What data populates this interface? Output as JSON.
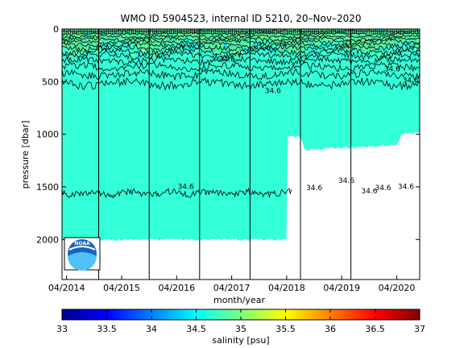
{
  "chart_data": [
    {
      "type": "heatmap",
      "title": "WMO ID 5904523, internal ID 5210, 20–Nov–2020",
      "xlabel": "month/year",
      "ylabel": "pressure [dbar]",
      "x_tick_labels": [
        "04/2014",
        "04/2015",
        "04/2016",
        "04/2017",
        "04/2018",
        "04/2019",
        "04/2020"
      ],
      "x_tick_dates": [
        "2014-04",
        "2015-04",
        "2016-04",
        "2017-04",
        "2018-04",
        "2019-04",
        "2020-04"
      ],
      "xlim": [
        "2014-03",
        "2020-09"
      ],
      "y_ticks": [
        0,
        500,
        1000,
        1500,
        2000
      ],
      "ylim": [
        2380,
        0
      ],
      "y_reversed": true,
      "vertical_markers": [
        "2014-11",
        "2015-10",
        "2016-09",
        "2017-08",
        "2018-07",
        "2019-06"
      ],
      "profile_max_depth": [
        {
          "date": "2014-03",
          "pressure": 2000
        },
        {
          "date": "2018-04",
          "pressure": 2000
        },
        {
          "date": "2018-04",
          "pressure": 1010
        },
        {
          "date": "2018-07",
          "pressure": 1020
        },
        {
          "date": "2018-08",
          "pressure": 1150
        },
        {
          "date": "2020-04",
          "pressure": 1100
        },
        {
          "date": "2020-05",
          "pressure": 1000
        },
        {
          "date": "2020-09",
          "pressure": 980
        }
      ],
      "background_salinity": 34.6,
      "contour_labels": [
        {
          "text": "34.6",
          "date": "2016-06",
          "pressure": 1520
        },
        {
          "text": "34.6",
          "date": "2018-10",
          "pressure": 1530
        },
        {
          "text": "34.6",
          "date": "2019-05",
          "pressure": 1460
        },
        {
          "text": "34.6",
          "date": "2019-10",
          "pressure": 1560
        },
        {
          "text": "34.6",
          "date": "2020-01",
          "pressure": 1530
        },
        {
          "text": "34.6",
          "date": "2020-06",
          "pressure": 1520
        },
        {
          "text": "34.6",
          "date": "2017-03",
          "pressure": 310
        },
        {
          "text": "34.6",
          "date": "2018-01",
          "pressure": 610
        },
        {
          "text": "34.6",
          "date": "2020-03",
          "pressure": 400
        },
        {
          "text": "34.6",
          "date": "2020-07",
          "pressure": 510
        }
      ],
      "colorbar": {
        "label": "salinity [psu]",
        "ticks": [
          33,
          33.5,
          34,
          34.5,
          35,
          35.5,
          36,
          36.5,
          37
        ],
        "range": [
          33,
          37
        ],
        "colormap": "jet"
      },
      "colors": {
        "deep_water": "#33ffd8",
        "surface_layer": "#55f0a0",
        "contour": "#000000"
      }
    }
  ],
  "logo": {
    "text": "NOAA",
    "icon": "noaa-logo-icon"
  }
}
